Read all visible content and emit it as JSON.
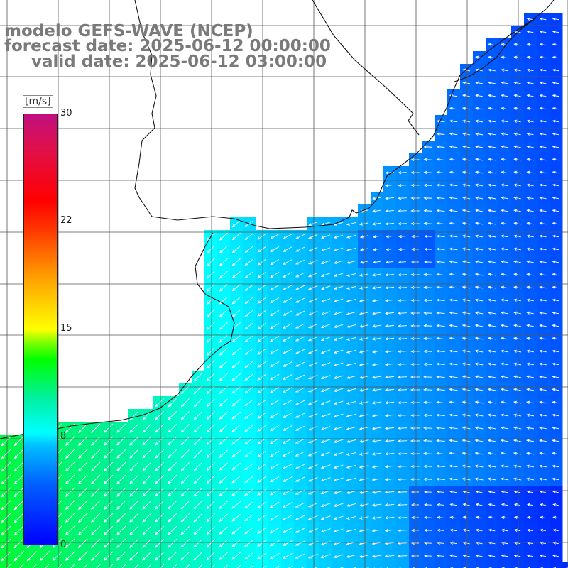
{
  "title": {
    "line1": "modelo GEFS-WAVE (NCEP)",
    "line2": "forecast date: 2025-06-12 00:00:00",
    "line3": "valid date: 2025-06-12 03:00:00"
  },
  "colorbar": {
    "unit": "[m/s]",
    "ticks": [
      "30",
      "22",
      "15",
      "8",
      "0"
    ],
    "min": 0,
    "max": 30
  },
  "colors": {
    "land": "#ffffff",
    "coast": "#111111",
    "grid": "#555555",
    "arrows": "#ffffff",
    "title": "#7a7a7a"
  },
  "map": {
    "variable": "wind speed and direction",
    "region": "Río de la Plata / Uruguay / Buenos Aires coast"
  }
}
